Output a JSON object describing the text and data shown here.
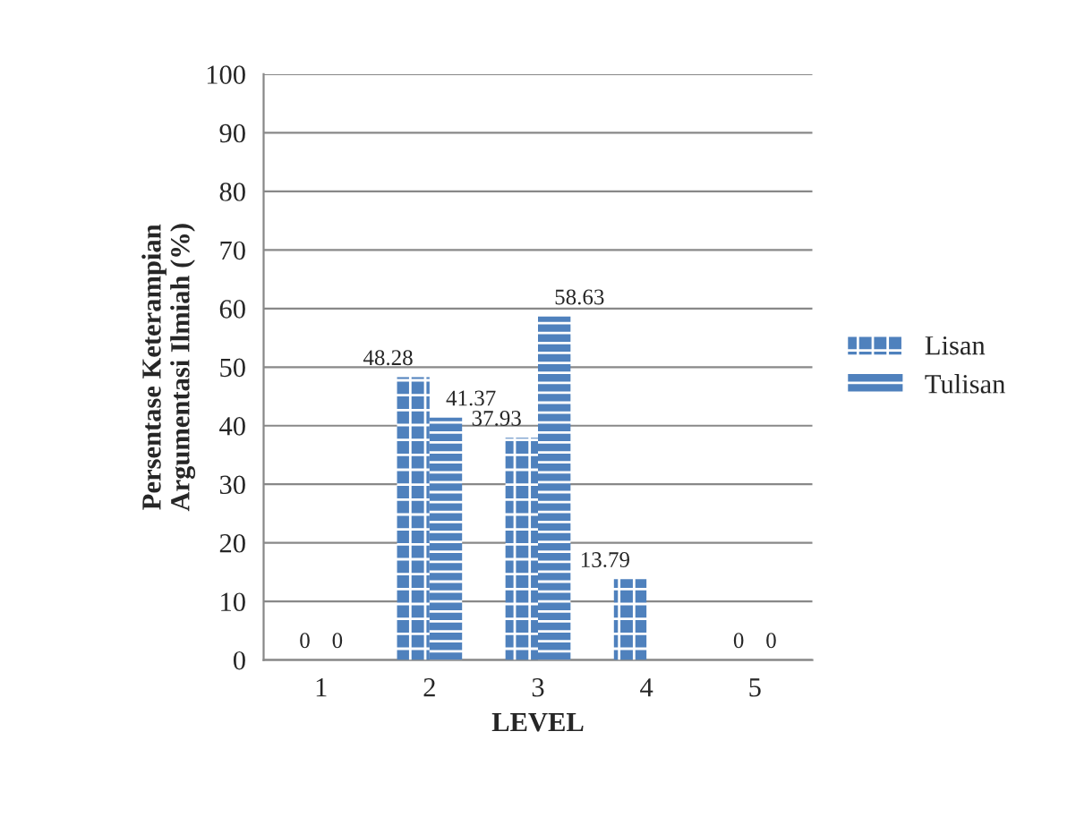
{
  "chart_data": {
    "type": "bar",
    "xlabel": "LEVEL",
    "ylabel": "Persentase Keterampian\nArgumentasi Ilmiah (%)",
    "categories": [
      "1",
      "2",
      "3",
      "4",
      "5"
    ],
    "series": [
      {
        "name": "Lisan",
        "color": "#4f81bd",
        "values": [
          0,
          48.28,
          37.93,
          13.79,
          0
        ],
        "value_labels": [
          "0",
          "48.28",
          "37.93",
          "13.79",
          "0"
        ]
      },
      {
        "name": "Tulisan",
        "color": "#4f81bd",
        "values": [
          0,
          41.37,
          58.63,
          0,
          0
        ],
        "value_labels": [
          "0",
          "41.37",
          "58.63",
          null,
          "0"
        ]
      }
    ],
    "ylim": [
      0,
      100
    ],
    "yticks": [
      0,
      10,
      20,
      30,
      40,
      50,
      60,
      70,
      80,
      90,
      100
    ],
    "grid": "y",
    "legend": "right"
  }
}
